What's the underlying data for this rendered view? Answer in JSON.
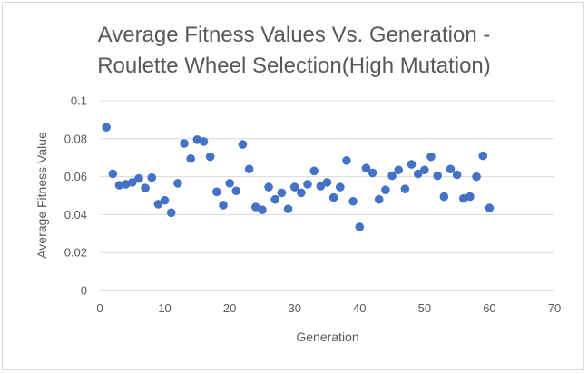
{
  "chart_data": {
    "type": "scatter",
    "title_lines": [
      "Average Fitness Values Vs. Generation -",
      "Roulette Wheel Selection(High Mutation)"
    ],
    "xlabel": "Generation",
    "ylabel": "Average Fitness Value",
    "xlim": [
      0,
      70
    ],
    "ylim": [
      0,
      0.1
    ],
    "x_ticks": [
      0,
      10,
      20,
      30,
      40,
      50,
      60,
      70
    ],
    "y_ticks": [
      0,
      0.02,
      0.04,
      0.06,
      0.08,
      0.1
    ],
    "x_tick_labels": [
      "0",
      "10",
      "20",
      "30",
      "40",
      "50",
      "60",
      "70"
    ],
    "y_tick_labels": [
      "0",
      "0.02",
      "0.04",
      "0.06",
      "0.08",
      "0.1"
    ],
    "grid": "horizontal",
    "legend": "none",
    "marker_color": "#4472c4",
    "series": [
      {
        "name": "Average Fitness",
        "x": [
          1,
          2,
          3,
          4,
          5,
          6,
          7,
          8,
          9,
          10,
          11,
          12,
          13,
          14,
          15,
          16,
          17,
          18,
          19,
          20,
          21,
          22,
          23,
          24,
          25,
          26,
          27,
          28,
          29,
          30,
          31,
          32,
          33,
          34,
          35,
          36,
          37,
          38,
          39,
          40,
          41,
          42,
          43,
          44,
          45,
          46,
          47,
          48,
          49,
          50,
          51,
          52,
          53,
          54,
          55,
          56,
          57,
          58,
          59,
          60
        ],
        "y": [
          0.086,
          0.0615,
          0.0555,
          0.056,
          0.057,
          0.059,
          0.054,
          0.0595,
          0.0455,
          0.0475,
          0.041,
          0.0565,
          0.0775,
          0.0695,
          0.0795,
          0.0785,
          0.0705,
          0.052,
          0.045,
          0.0565,
          0.0525,
          0.077,
          0.064,
          0.044,
          0.0425,
          0.0545,
          0.048,
          0.0515,
          0.043,
          0.0545,
          0.0515,
          0.056,
          0.063,
          0.055,
          0.057,
          0.049,
          0.0545,
          0.0685,
          0.047,
          0.0335,
          0.0645,
          0.062,
          0.048,
          0.053,
          0.0605,
          0.0635,
          0.0535,
          0.0665,
          0.0615,
          0.0635,
          0.0705,
          0.0605,
          0.0495,
          0.064,
          0.061,
          0.0485,
          0.0495,
          0.06,
          0.071,
          0.0435
        ]
      }
    ]
  }
}
